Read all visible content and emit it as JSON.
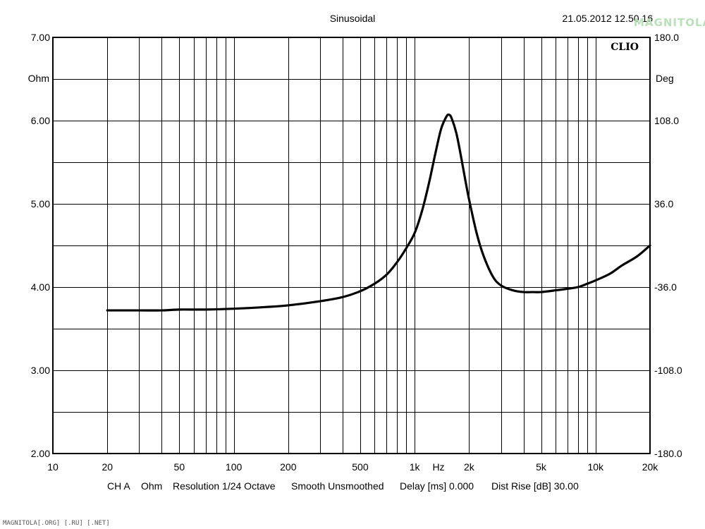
{
  "header": {
    "title": "Sinusoidal",
    "timestamp": "21.05.2012 12.50.16",
    "brand": "CLIO"
  },
  "watermark": {
    "logo_text": "MAGNITOLA",
    "bottom_text": "MAGNITOLA[.ORG] [.RU] [.NET]"
  },
  "chart_data": {
    "type": "line",
    "title": "Sinusoidal",
    "xlabel": "Hz",
    "ylabel": "Ohm",
    "y2label": "Deg",
    "x_scale": "log",
    "xlim": [
      10,
      20000
    ],
    "ylim": [
      2.0,
      7.0
    ],
    "y2lim": [
      -180.0,
      180.0
    ],
    "grid": true,
    "x_ticks": [
      {
        "value": 10,
        "label": "10"
      },
      {
        "value": 20,
        "label": "20"
      },
      {
        "value": 50,
        "label": "50"
      },
      {
        "value": 100,
        "label": "100"
      },
      {
        "value": 200,
        "label": "200"
      },
      {
        "value": 500,
        "label": "500"
      },
      {
        "value": 1000,
        "label": "1k"
      },
      {
        "value": 2000,
        "label": "2k"
      },
      {
        "value": 5000,
        "label": "5k"
      },
      {
        "value": 10000,
        "label": "10k"
      },
      {
        "value": 20000,
        "label": "20k"
      }
    ],
    "y_ticks": [
      {
        "value": 2.0,
        "label": "2.00"
      },
      {
        "value": 3.0,
        "label": "3.00"
      },
      {
        "value": 4.0,
        "label": "4.00"
      },
      {
        "value": 5.0,
        "label": "5.00"
      },
      {
        "value": 6.0,
        "label": "6.00"
      },
      {
        "value": 7.0,
        "label": "7.00"
      }
    ],
    "y2_ticks": [
      {
        "value": -180.0,
        "label": "-180.0"
      },
      {
        "value": -108.0,
        "label": "-108.0"
      },
      {
        "value": -36.0,
        "label": "-36.0"
      },
      {
        "value": 36.0,
        "label": "36.0"
      },
      {
        "value": 108.0,
        "label": "108.0"
      },
      {
        "value": 180.0,
        "label": "180.0"
      }
    ],
    "series": [
      {
        "color": "#000000",
        "x": [
          20,
          30,
          40,
          50,
          70,
          100,
          150,
          200,
          300,
          400,
          500,
          600,
          700,
          800,
          900,
          1000,
          1100,
          1200,
          1300,
          1400,
          1500,
          1550,
          1600,
          1700,
          1800,
          1900,
          2000,
          2200,
          2400,
          2700,
          3000,
          3500,
          4000,
          4500,
          5000,
          6000,
          7000,
          8000,
          9000,
          10000,
          12000,
          14000,
          17000,
          20000
        ],
        "y": [
          3.72,
          3.72,
          3.72,
          3.73,
          3.73,
          3.74,
          3.76,
          3.78,
          3.83,
          3.88,
          3.95,
          4.04,
          4.15,
          4.3,
          4.47,
          4.65,
          4.92,
          5.25,
          5.6,
          5.9,
          6.05,
          6.07,
          6.03,
          5.85,
          5.58,
          5.3,
          5.05,
          4.65,
          4.38,
          4.13,
          4.02,
          3.96,
          3.94,
          3.94,
          3.94,
          3.96,
          3.98,
          4.0,
          4.04,
          4.08,
          4.16,
          4.26,
          4.37,
          4.5
        ]
      }
    ]
  },
  "footer": {
    "channel": "CH A",
    "unit": "Ohm",
    "resolution": "Resolution 1/24 Octave",
    "smooth": "Smooth Unsmoothed",
    "delay": "Delay [ms] 0.000",
    "dist_rise": "Dist Rise [dB] 30.00"
  }
}
